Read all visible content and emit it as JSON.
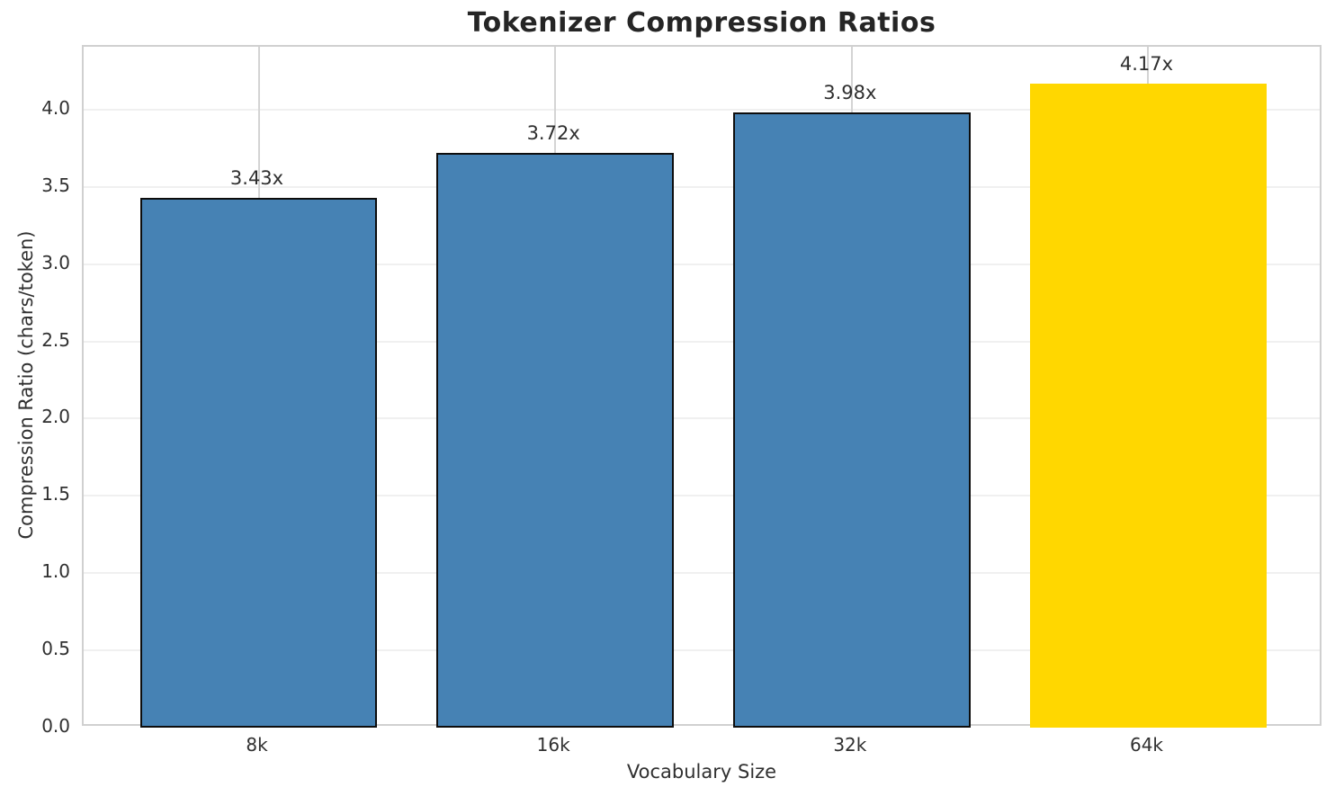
{
  "chart_data": {
    "type": "bar",
    "title": "Tokenizer Compression Ratios",
    "xlabel": "Vocabulary Size",
    "ylabel": "Compression Ratio (chars/token)",
    "categories": [
      "8k",
      "16k",
      "32k",
      "64k"
    ],
    "values": [
      3.43,
      3.72,
      3.98,
      4.17
    ],
    "bar_labels": [
      "3.43x",
      "3.72x",
      "3.98x",
      "4.17x"
    ],
    "bar_colors": [
      "#4682B4",
      "#4682B4",
      "#4682B4",
      "#FFD700"
    ],
    "bar_edge_colors": [
      "#0d0d0d",
      "#0d0d0d",
      "#0d0d0d",
      "none"
    ],
    "ylim": [
      0,
      4.407
    ],
    "yticks": [
      0.0,
      0.5,
      1.0,
      1.5,
      2.0,
      2.5,
      3.0,
      3.5,
      4.0
    ],
    "ytick_labels": [
      "0.0",
      "0.5",
      "1.0",
      "1.5",
      "2.0",
      "2.5",
      "3.0",
      "3.5",
      "4.0"
    ],
    "grid": "both",
    "legend_position": "none"
  },
  "style": {
    "background": "#ffffff",
    "bar_default_color": "#4682B4",
    "bar_highlight_color": "#FFD700",
    "spine_color": "#d0d0d0",
    "vgrid_color": "#d4d4d4",
    "hgrid_color": "#f0f0f0",
    "title_color": "#252525",
    "text_color": "#303030"
  }
}
